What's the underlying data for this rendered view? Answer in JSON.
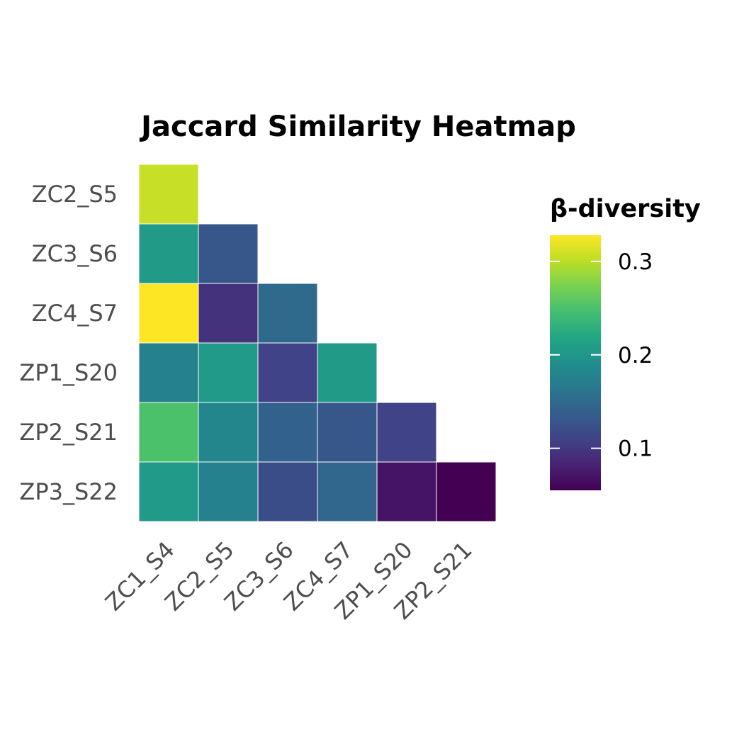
{
  "chart_data": {
    "type": "heatmap",
    "title": "Jaccard Similarity Heatmap",
    "legend_title": "β-diversity",
    "legend_position": "right",
    "color_scale": "viridis",
    "color_range": [
      0.055,
      0.328
    ],
    "legend_ticks": [
      0.1,
      0.2,
      0.3
    ],
    "legend_tick_labels": [
      "0.1",
      "0.2",
      "0.3"
    ],
    "x_categories": [
      "ZC1_S4",
      "ZC2_S5",
      "ZC3_S6",
      "ZC4_S7",
      "ZP1_S20",
      "ZP2_S21"
    ],
    "y_categories": [
      "ZC2_S5",
      "ZC3_S6",
      "ZC4_S7",
      "ZP1_S20",
      "ZP2_S21",
      "ZP3_S22"
    ],
    "grid": false,
    "cells": [
      {
        "x": "ZC1_S4",
        "y": "ZC2_S5",
        "value": 0.305
      },
      {
        "x": "ZC1_S4",
        "y": "ZC3_S6",
        "value": 0.205
      },
      {
        "x": "ZC2_S5",
        "y": "ZC3_S6",
        "value": 0.13
      },
      {
        "x": "ZC1_S4",
        "y": "ZC4_S7",
        "value": 0.328
      },
      {
        "x": "ZC2_S5",
        "y": "ZC4_S7",
        "value": 0.095
      },
      {
        "x": "ZC3_S6",
        "y": "ZC4_S7",
        "value": 0.15
      },
      {
        "x": "ZC1_S4",
        "y": "ZP1_S20",
        "value": 0.175
      },
      {
        "x": "ZC2_S5",
        "y": "ZP1_S20",
        "value": 0.203
      },
      {
        "x": "ZC3_S6",
        "y": "ZP1_S20",
        "value": 0.11
      },
      {
        "x": "ZC4_S7",
        "y": "ZP1_S20",
        "value": 0.205
      },
      {
        "x": "ZC1_S4",
        "y": "ZP2_S21",
        "value": 0.25
      },
      {
        "x": "ZC2_S5",
        "y": "ZP2_S21",
        "value": 0.18
      },
      {
        "x": "ZC3_S6",
        "y": "ZP2_S21",
        "value": 0.14
      },
      {
        "x": "ZC4_S7",
        "y": "ZP2_S21",
        "value": 0.13
      },
      {
        "x": "ZP1_S20",
        "y": "ZP2_S21",
        "value": 0.11
      },
      {
        "x": "ZC1_S4",
        "y": "ZP3_S22",
        "value": 0.203
      },
      {
        "x": "ZC2_S5",
        "y": "ZP3_S22",
        "value": 0.175
      },
      {
        "x": "ZC3_S6",
        "y": "ZP3_S22",
        "value": 0.12
      },
      {
        "x": "ZC4_S7",
        "y": "ZP3_S22",
        "value": 0.145
      },
      {
        "x": "ZP1_S20",
        "y": "ZP3_S22",
        "value": 0.07
      },
      {
        "x": "ZP2_S21",
        "y": "ZP3_S22",
        "value": 0.055
      }
    ]
  }
}
